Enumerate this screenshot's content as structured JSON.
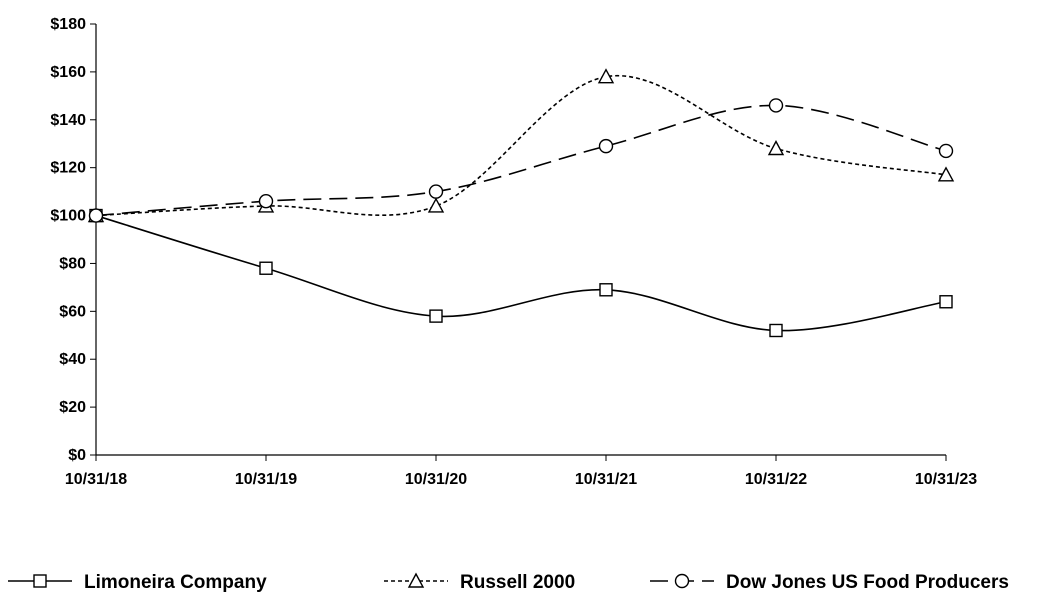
{
  "chart_data": {
    "type": "line",
    "categories": [
      "10/31/18",
      "10/31/19",
      "10/31/20",
      "10/31/21",
      "10/31/22",
      "10/31/23"
    ],
    "series": [
      {
        "name": "Limoneira Company",
        "values": [
          100,
          78,
          58,
          69,
          52,
          64
        ],
        "color": "#000000",
        "dash": "solid",
        "marker": "square"
      },
      {
        "name": "Russell 2000",
        "values": [
          100,
          104,
          104,
          158,
          128,
          117
        ],
        "color": "#000000",
        "dash": "dotted",
        "marker": "triangle"
      },
      {
        "name": "Dow Jones US Food Producers",
        "values": [
          100,
          106,
          110,
          129,
          146,
          127
        ],
        "color": "#000000",
        "dash": "dashed",
        "marker": "circle"
      }
    ],
    "y_ticks": [
      "$0",
      "$20",
      "$40",
      "$60",
      "$80",
      "$100",
      "$120",
      "$140",
      "$160",
      "$180"
    ],
    "ylim": [
      0,
      180
    ],
    "grid": false,
    "smooth": true,
    "legend_position": "bottom"
  }
}
